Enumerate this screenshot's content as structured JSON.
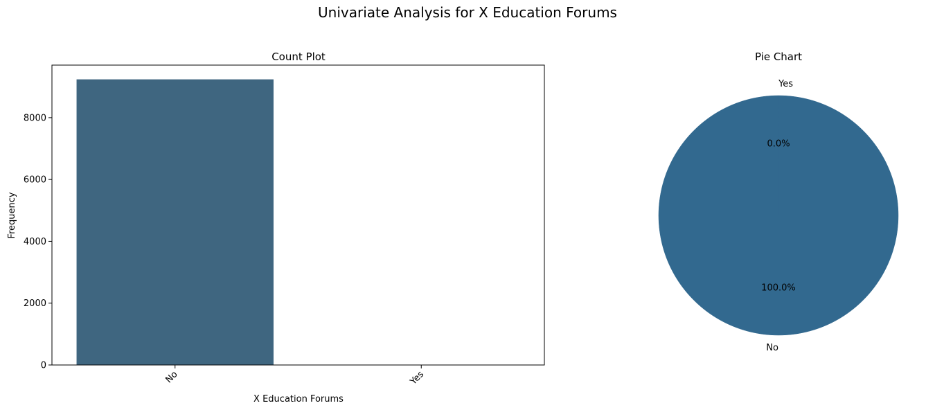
{
  "figure": {
    "suptitle": "Univariate Analysis for X Education Forums"
  },
  "chart_data": [
    {
      "type": "bar",
      "title": "Count Plot",
      "xlabel": "X Education Forums",
      "ylabel": "Frequency",
      "categories": [
        "No",
        "Yes"
      ],
      "values": [
        9239,
        1
      ],
      "ylim": [
        0,
        9700
      ],
      "yticks": [
        0,
        2000,
        4000,
        6000,
        8000
      ],
      "xtick_rotation": 45,
      "grid": false,
      "color": "#3f6680"
    },
    {
      "type": "pie",
      "title": "Pie Chart",
      "labels": [
        "No",
        "Yes"
      ],
      "values": [
        9239,
        1
      ],
      "percent_labels": [
        "100.0%",
        "0.0%"
      ],
      "start_angle_deg": 90,
      "color": "#32698f",
      "legend": "none"
    }
  ]
}
